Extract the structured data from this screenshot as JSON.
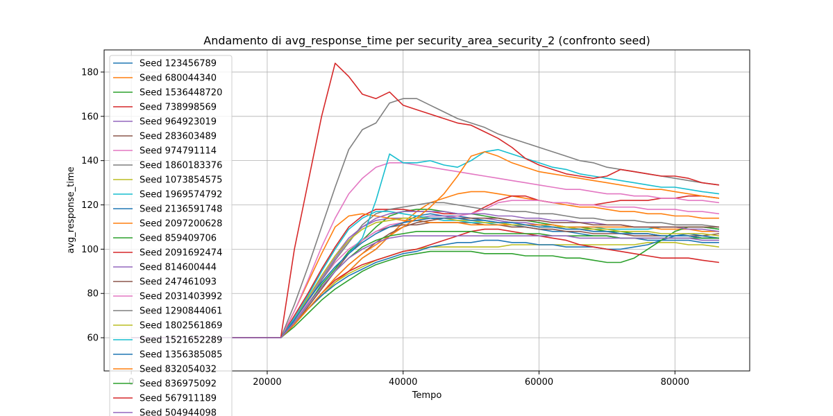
{
  "chart_data": {
    "type": "line",
    "title": "Andamento di avg_response_time per security_area_security_2 (confronto seed)",
    "xlabel": "Tempo",
    "ylabel": "avg_response_time",
    "xlim": [
      -4000,
      91000
    ],
    "ylim": [
      45,
      190
    ],
    "xticks": [
      0,
      20000,
      40000,
      60000,
      80000
    ],
    "xtick_labels": [
      "0",
      "20000",
      "40000",
      "60000",
      "80000"
    ],
    "yticks": [
      60,
      80,
      100,
      120,
      140,
      160,
      180
    ],
    "ytick_labels": [
      "60",
      "80",
      "100",
      "120",
      "140",
      "160",
      "180"
    ],
    "grid": true,
    "legend_position": "upper-left",
    "colors": [
      "#1f77b4",
      "#ff7f0e",
      "#2ca02c",
      "#d62728",
      "#9467bd",
      "#8c564b",
      "#e377c2",
      "#7f7f7f",
      "#bcbd22",
      "#17becf"
    ],
    "shared_x": [
      0,
      22000,
      24000,
      26000,
      28000,
      30000,
      32000,
      34000,
      36000,
      38000,
      40000,
      42000,
      44000,
      46000,
      48000,
      50000,
      52000,
      54000,
      56000,
      58000,
      60000,
      62000,
      64000,
      66000,
      68000,
      70000,
      72000,
      74000,
      76000,
      78000,
      80000,
      82000,
      84000,
      86500
    ],
    "series": [
      {
        "name": "Seed 123456789",
        "values": [
          60,
          60,
          66,
          73,
          79,
          85,
          90,
          96,
          100,
          106,
          112,
          115,
          116,
          115,
          115,
          114,
          113,
          112,
          111,
          110,
          109,
          108,
          108,
          107,
          106,
          106,
          105,
          105,
          104,
          104,
          104,
          104,
          103,
          103
        ]
      },
      {
        "name": "Seed 680044340",
        "values": [
          60,
          60,
          66,
          73,
          79,
          85,
          90,
          96,
          100,
          106,
          112,
          117,
          121,
          123,
          125,
          126,
          126,
          125,
          124,
          123,
          122,
          121,
          120,
          119,
          119,
          118,
          117,
          117,
          116,
          116,
          115,
          115,
          114,
          114
        ]
      },
      {
        "name": "Seed 1536448720",
        "values": [
          60,
          60,
          67,
          75,
          84,
          91,
          99,
          104,
          110,
          115,
          117,
          118,
          118,
          117,
          116,
          116,
          115,
          114,
          113,
          113,
          112,
          111,
          110,
          110,
          109,
          108,
          108,
          107,
          107,
          106,
          106,
          106,
          105,
          105
        ]
      },
      {
        "name": "Seed 738998569",
        "values": [
          60,
          60,
          70,
          80,
          91,
          101,
          110,
          115,
          118,
          118,
          118,
          117,
          117,
          116,
          116,
          116,
          119,
          122,
          124,
          124,
          122,
          121,
          121,
          120,
          120,
          121,
          122,
          122,
          122,
          123,
          123,
          124,
          124,
          123
        ]
      },
      {
        "name": "Seed 964923019",
        "values": [
          60,
          60,
          68,
          78,
          88,
          97,
          105,
          110,
          113,
          114,
          114,
          114,
          115,
          115,
          114,
          114,
          114,
          113,
          112,
          112,
          111,
          110,
          109,
          109,
          108,
          108,
          107,
          107,
          107,
          106,
          106,
          106,
          105,
          105
        ]
      },
      {
        "name": "Seed 283603489",
        "values": [
          60,
          60,
          66,
          74,
          82,
          90,
          98,
          104,
          108,
          110,
          111,
          111,
          112,
          112,
          112,
          112,
          111,
          111,
          110,
          110,
          109,
          109,
          108,
          108,
          107,
          107,
          107,
          106,
          106,
          106,
          106,
          106,
          106,
          107
        ]
      },
      {
        "name": "Seed 974791114",
        "values": [
          60,
          60,
          67,
          76,
          86,
          94,
          100,
          104,
          108,
          111,
          112,
          113,
          114,
          114,
          115,
          116,
          118,
          121,
          122,
          122,
          122,
          121,
          121,
          120,
          120,
          119,
          119,
          119,
          118,
          118,
          118,
          117,
          117,
          116
        ]
      },
      {
        "name": "Seed 1860183376",
        "values": [
          60,
          60,
          68,
          77,
          86,
          95,
          103,
          111,
          116,
          118,
          119,
          120,
          121,
          121,
          120,
          119,
          118,
          118,
          117,
          117,
          116,
          116,
          115,
          114,
          114,
          113,
          113,
          113,
          112,
          112,
          111,
          111,
          111,
          110
        ]
      },
      {
        "name": "Seed 1073854575",
        "values": [
          60,
          60,
          66,
          73,
          79,
          85,
          89,
          92,
          95,
          97,
          99,
          100,
          101,
          101,
          101,
          101,
          101,
          101,
          102,
          102,
          102,
          102,
          102,
          102,
          102,
          102,
          102,
          102,
          103,
          103,
          103,
          102,
          102,
          101
        ]
      },
      {
        "name": "Seed 1969574792",
        "values": [
          60,
          60,
          69,
          79,
          90,
          100,
          109,
          114,
          117,
          117,
          116,
          115,
          114,
          113,
          113,
          112,
          112,
          111,
          111,
          111,
          111,
          110,
          110,
          110,
          110,
          109,
          109,
          109,
          109,
          110,
          110,
          110,
          110,
          109
        ]
      },
      {
        "name": "Seed 2136591748",
        "values": [
          60,
          60,
          66,
          73,
          79,
          84,
          88,
          91,
          94,
          96,
          98,
          99,
          101,
          102,
          103,
          103,
          104,
          104,
          103,
          103,
          102,
          102,
          101,
          101,
          101,
          100,
          100,
          101,
          102,
          104,
          106,
          107,
          106,
          105
        ]
      },
      {
        "name": "Seed 2097200628",
        "values": [
          60,
          60,
          72,
          85,
          98,
          110,
          115,
          116,
          115,
          114,
          113,
          113,
          112,
          112,
          112,
          111,
          111,
          111,
          111,
          111,
          111,
          111,
          110,
          110,
          110,
          110,
          110,
          110,
          110,
          109,
          109,
          109,
          108,
          108
        ]
      },
      {
        "name": "Seed 859409706",
        "values": [
          60,
          60,
          65,
          71,
          77,
          82,
          86,
          90,
          93,
          95,
          97,
          98,
          99,
          99,
          99,
          99,
          98,
          98,
          98,
          97,
          97,
          97,
          96,
          96,
          95,
          94,
          94,
          96,
          100,
          104,
          108,
          110,
          110,
          109
        ]
      },
      {
        "name": "Seed 2091692474",
        "values": [
          60,
          60,
          66,
          73,
          80,
          86,
          90,
          93,
          95,
          97,
          99,
          100,
          102,
          104,
          106,
          108,
          109,
          109,
          108,
          107,
          106,
          105,
          104,
          102,
          101,
          100,
          99,
          98,
          97,
          96,
          96,
          96,
          95,
          94
        ]
      },
      {
        "name": "Seed 814600444",
        "values": [
          60,
          60,
          68,
          78,
          87,
          96,
          104,
          110,
          114,
          116,
          117,
          117,
          117,
          117,
          116,
          116,
          116,
          115,
          115,
          114,
          114,
          113,
          113,
          112,
          112,
          111,
          111,
          110,
          110,
          110,
          110,
          109,
          109,
          108
        ]
      },
      {
        "name": "Seed 247461093",
        "values": [
          60,
          60,
          66,
          73,
          80,
          87,
          93,
          98,
          103,
          107,
          110,
          112,
          113,
          114,
          114,
          114,
          114,
          114,
          113,
          113,
          113,
          112,
          112,
          112,
          111,
          111,
          111,
          110,
          110,
          110,
          110,
          110,
          110,
          110
        ]
      },
      {
        "name": "Seed 2031403992",
        "values": [
          60,
          60,
          72,
          86,
          101,
          114,
          125,
          132,
          137,
          139,
          139,
          138,
          137,
          136,
          135,
          134,
          133,
          132,
          131,
          130,
          129,
          128,
          127,
          127,
          126,
          125,
          125,
          124,
          124,
          123,
          123,
          122,
          122,
          121
        ]
      },
      {
        "name": "Seed 1290844061",
        "values": [
          60,
          60,
          75,
          92,
          110,
          128,
          145,
          154,
          157,
          166,
          168,
          168,
          165,
          162,
          159,
          157,
          155,
          152,
          150,
          148,
          146,
          144,
          142,
          140,
          139,
          137,
          136,
          135,
          134,
          133,
          132,
          131,
          130,
          129
        ]
      },
      {
        "name": "Seed 1802561869",
        "values": [
          60,
          60,
          68,
          78,
          88,
          97,
          104,
          109,
          112,
          113,
          114,
          114,
          114,
          114,
          113,
          113,
          112,
          112,
          111,
          111,
          110,
          110,
          110,
          109,
          109,
          109,
          108,
          108,
          108,
          107,
          107,
          107,
          107,
          106
        ]
      },
      {
        "name": "Seed 1521652289",
        "values": [
          60,
          60,
          68,
          77,
          85,
          92,
          98,
          105,
          122,
          143,
          139,
          139,
          140,
          138,
          137,
          140,
          144,
          145,
          143,
          141,
          139,
          137,
          136,
          134,
          133,
          132,
          131,
          130,
          129,
          128,
          128,
          127,
          126,
          125
        ]
      },
      {
        "name": "Seed 1356385085",
        "values": [
          60,
          60,
          68,
          77,
          85,
          92,
          98,
          103,
          107,
          110,
          112,
          113,
          114,
          114,
          114,
          113,
          113,
          112,
          112,
          111,
          110,
          110,
          109,
          109,
          108,
          108,
          107,
          107,
          107,
          106,
          106,
          106,
          105,
          105
        ]
      },
      {
        "name": "Seed 832054032",
        "values": [
          60,
          60,
          66,
          73,
          80,
          87,
          93,
          98,
          102,
          106,
          110,
          114,
          119,
          125,
          133,
          142,
          144,
          142,
          139,
          137,
          135,
          134,
          133,
          132,
          131,
          130,
          129,
          128,
          127,
          127,
          126,
          125,
          124,
          123
        ]
      },
      {
        "name": "Seed 836975092",
        "values": [
          60,
          60,
          67,
          75,
          83,
          90,
          96,
          101,
          104,
          106,
          107,
          108,
          108,
          108,
          108,
          108,
          107,
          107,
          107,
          107,
          107,
          106,
          106,
          106,
          106,
          106,
          105,
          105,
          105,
          105,
          105,
          105,
          105,
          105
        ]
      },
      {
        "name": "Seed 567911189",
        "values": [
          60,
          60,
          100,
          130,
          160,
          184,
          178,
          170,
          168,
          171,
          165,
          163,
          161,
          159,
          157,
          156,
          153,
          150,
          146,
          141,
          138,
          136,
          134,
          133,
          132,
          133,
          136,
          135,
          134,
          133,
          133,
          132,
          130,
          129
        ]
      },
      {
        "name": "Seed 504944098",
        "values": [
          60,
          60,
          67,
          75,
          83,
          90,
          96,
          100,
          103,
          105,
          106,
          106,
          106,
          106,
          106,
          106,
          106,
          106,
          106,
          106,
          106,
          106,
          106,
          105,
          105,
          105,
          105,
          105,
          105,
          105,
          105,
          105,
          104,
          104
        ]
      }
    ]
  }
}
